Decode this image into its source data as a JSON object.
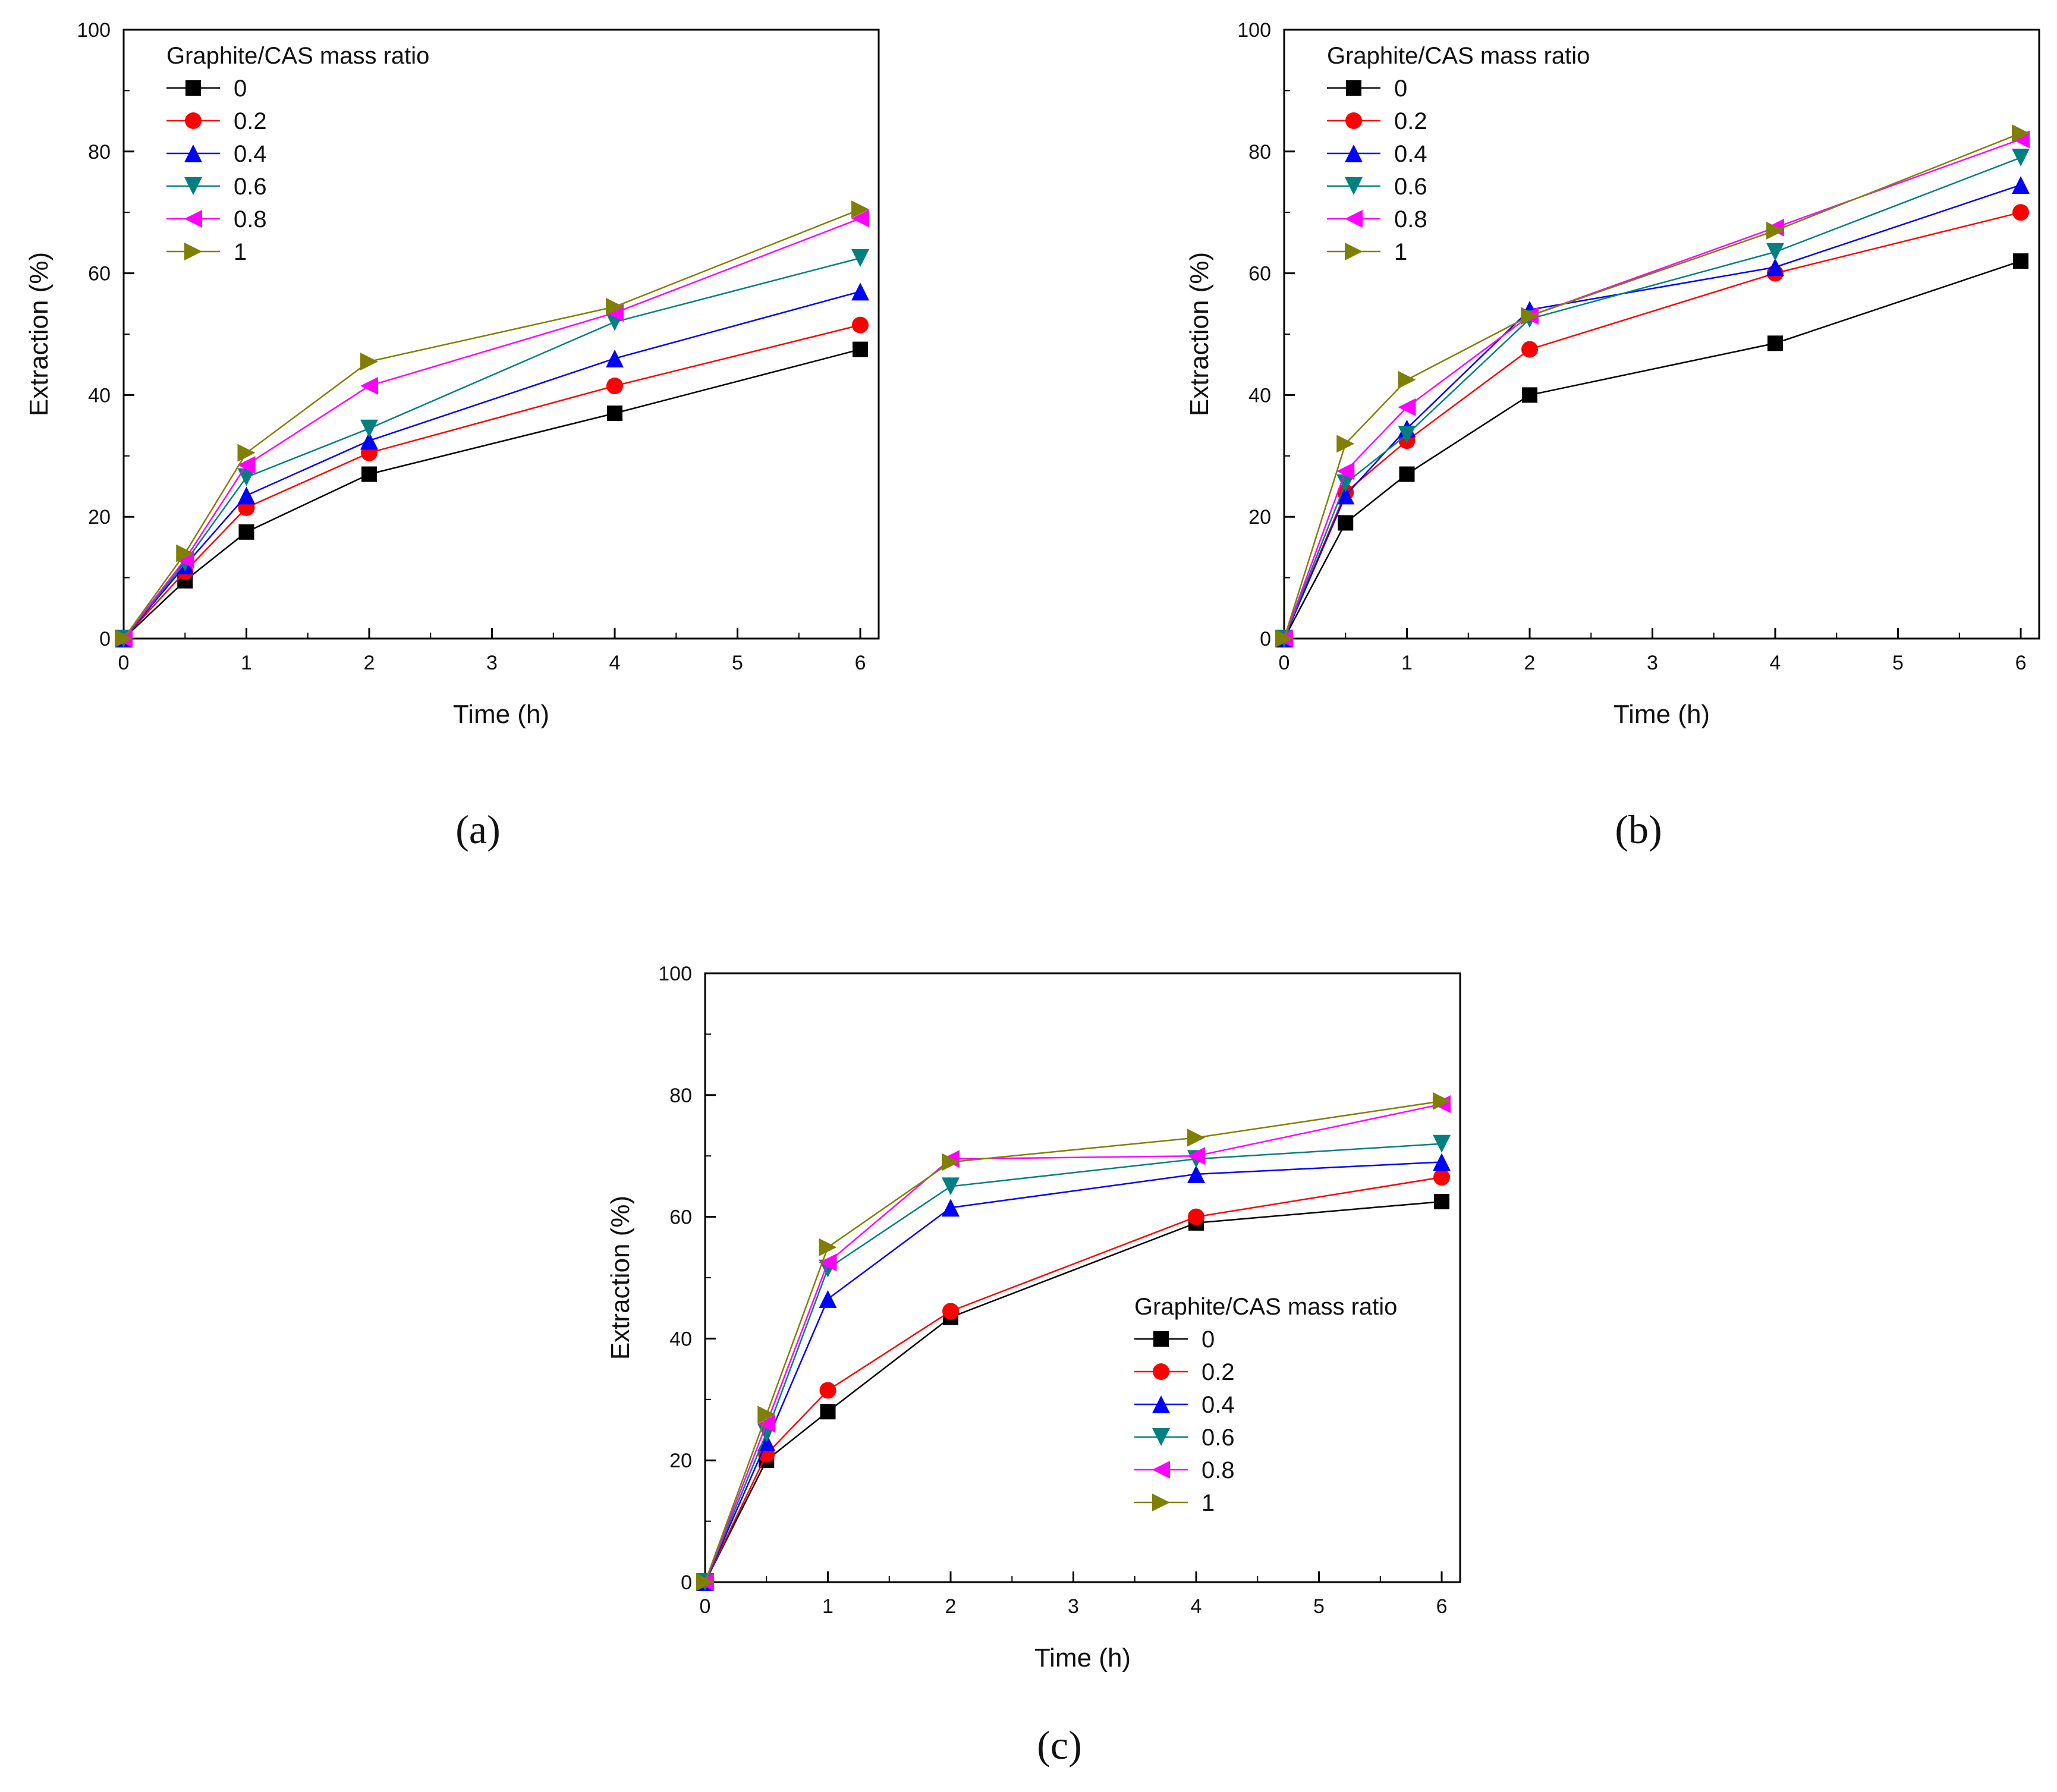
{
  "chart_data": [
    {
      "type": "line",
      "panel_label": "(a)",
      "xlabel": "Time (h)",
      "ylabel": "Extraction (%)",
      "xlim": [
        0,
        6.15
      ],
      "ylim": [
        0,
        100
      ],
      "xticks": [
        "0",
        "1",
        "2",
        "3",
        "4",
        "5",
        "6"
      ],
      "yticks": [
        "0",
        "20",
        "40",
        "60",
        "80",
        "100"
      ],
      "legend_title": "Graphite/CAS mass ratio",
      "legend_position": "top-left",
      "x": [
        0,
        0.5,
        1,
        2,
        4,
        6
      ],
      "series": [
        {
          "name": "0",
          "color": "#000000",
          "marker": "square",
          "values": [
            0,
            9.5,
            17.5,
            27,
            37,
            47.5
          ]
        },
        {
          "name": "0.2",
          "color": "#ff0000",
          "marker": "circle",
          "values": [
            0,
            11,
            21.5,
            30.5,
            41.5,
            51.5
          ]
        },
        {
          "name": "0.4",
          "color": "#0000ff",
          "marker": "triangle-up",
          "values": [
            0,
            12,
            23.5,
            32.5,
            46,
            57
          ]
        },
        {
          "name": "0.6",
          "color": "#008080",
          "marker": "triangle-down",
          "values": [
            0,
            12.5,
            26.5,
            34.5,
            52,
            62.5
          ]
        },
        {
          "name": "0.8",
          "color": "#ff00ff",
          "marker": "triangle-left",
          "values": [
            0,
            13,
            28.5,
            41.5,
            53.5,
            69
          ]
        },
        {
          "name": "1",
          "color": "#808000",
          "marker": "triangle-right",
          "values": [
            0,
            14,
            30.5,
            45.5,
            54.5,
            70.5
          ]
        }
      ]
    },
    {
      "type": "line",
      "panel_label": "(b)",
      "xlabel": "Time (h)",
      "ylabel": "Extraction (%)",
      "xlim": [
        0,
        6.15
      ],
      "ylim": [
        0,
        100
      ],
      "xticks": [
        "0",
        "1",
        "2",
        "3",
        "4",
        "5",
        "6"
      ],
      "yticks": [
        "0",
        "20",
        "40",
        "60",
        "80",
        "100"
      ],
      "legend_title": "Graphite/CAS mass ratio",
      "legend_position": "top-left",
      "x": [
        0,
        0.5,
        1,
        2,
        4,
        6
      ],
      "series": [
        {
          "name": "0",
          "color": "#000000",
          "marker": "square",
          "values": [
            0,
            19,
            27,
            40,
            48.5,
            62
          ]
        },
        {
          "name": "0.2",
          "color": "#ff0000",
          "marker": "circle",
          "values": [
            0,
            24,
            32.5,
            47.5,
            60,
            70
          ]
        },
        {
          "name": "0.4",
          "color": "#0000ff",
          "marker": "triangle-up",
          "values": [
            0,
            23.5,
            34.5,
            54,
            61,
            74.5
          ]
        },
        {
          "name": "0.6",
          "color": "#008080",
          "marker": "triangle-down",
          "values": [
            0,
            25.5,
            33.5,
            52.5,
            63.5,
            79
          ]
        },
        {
          "name": "0.8",
          "color": "#ff00ff",
          "marker": "triangle-left",
          "values": [
            0,
            27.5,
            38,
            53,
            67.5,
            82
          ]
        },
        {
          "name": "1",
          "color": "#808000",
          "marker": "triangle-right",
          "values": [
            0,
            32,
            42.5,
            53,
            67,
            83
          ]
        }
      ]
    },
    {
      "type": "line",
      "panel_label": "(c)",
      "xlabel": "Time (h)",
      "ylabel": "Extraction (%)",
      "xlim": [
        0,
        6.15
      ],
      "ylim": [
        0,
        100
      ],
      "xticks": [
        "0",
        "1",
        "2",
        "3",
        "4",
        "5",
        "6"
      ],
      "yticks": [
        "0",
        "20",
        "40",
        "60",
        "80",
        "100"
      ],
      "legend_title": "Graphite/CAS mass ratio",
      "legend_position": "center-right",
      "x": [
        0,
        0.5,
        1,
        2,
        4,
        6
      ],
      "series": [
        {
          "name": "0",
          "color": "#000000",
          "marker": "square",
          "values": [
            0,
            20,
            28,
            43.5,
            59,
            62.5
          ]
        },
        {
          "name": "0.2",
          "color": "#ff0000",
          "marker": "circle",
          "values": [
            0,
            21,
            31.5,
            44.5,
            60,
            66.5
          ]
        },
        {
          "name": "0.4",
          "color": "#0000ff",
          "marker": "triangle-up",
          "values": [
            0,
            23,
            46.5,
            61.5,
            67,
            69
          ]
        },
        {
          "name": "0.6",
          "color": "#008080",
          "marker": "triangle-down",
          "values": [
            0,
            24.5,
            51.5,
            65,
            69.5,
            72
          ]
        },
        {
          "name": "0.8",
          "color": "#ff00ff",
          "marker": "triangle-left",
          "values": [
            0,
            26,
            52.5,
            69.5,
            70,
            78.5
          ]
        },
        {
          "name": "1",
          "color": "#808000",
          "marker": "triangle-right",
          "values": [
            0,
            27.5,
            55,
            69,
            73,
            79
          ]
        }
      ]
    }
  ]
}
